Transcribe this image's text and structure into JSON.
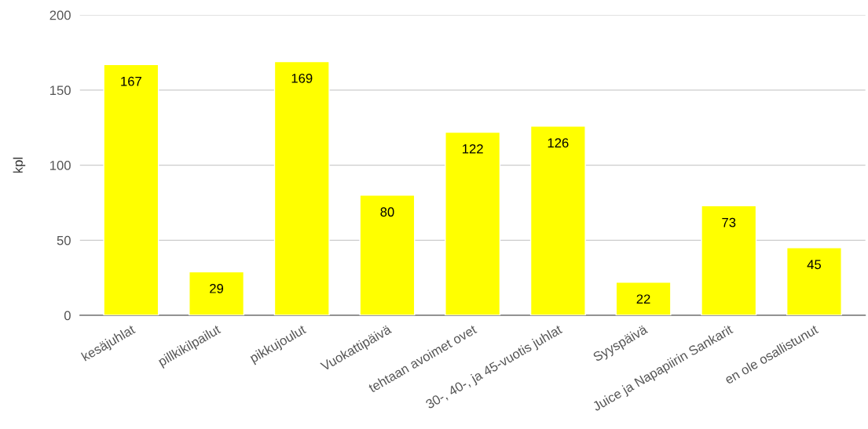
{
  "chart_data": {
    "type": "bar",
    "ylabel": "kpl",
    "categories": [
      "kesäjuhlat",
      "pillkikilpailut",
      "pikkujoulut",
      "Vuokattipäivä",
      "tehtaan avoimet ovet",
      "30-, 40-, ja 45-vuotis juhlat",
      "Syyspäivä",
      "Juice ja Napapiirin Sankarit",
      "en ole osallistunut"
    ],
    "values": [
      167,
      29,
      169,
      80,
      122,
      126,
      22,
      73,
      45
    ],
    "color": "#ffff00",
    "ylim": [
      0,
      200
    ],
    "yticks": [
      0,
      50,
      100,
      150,
      200
    ],
    "grid": "y",
    "data_labels": true
  }
}
